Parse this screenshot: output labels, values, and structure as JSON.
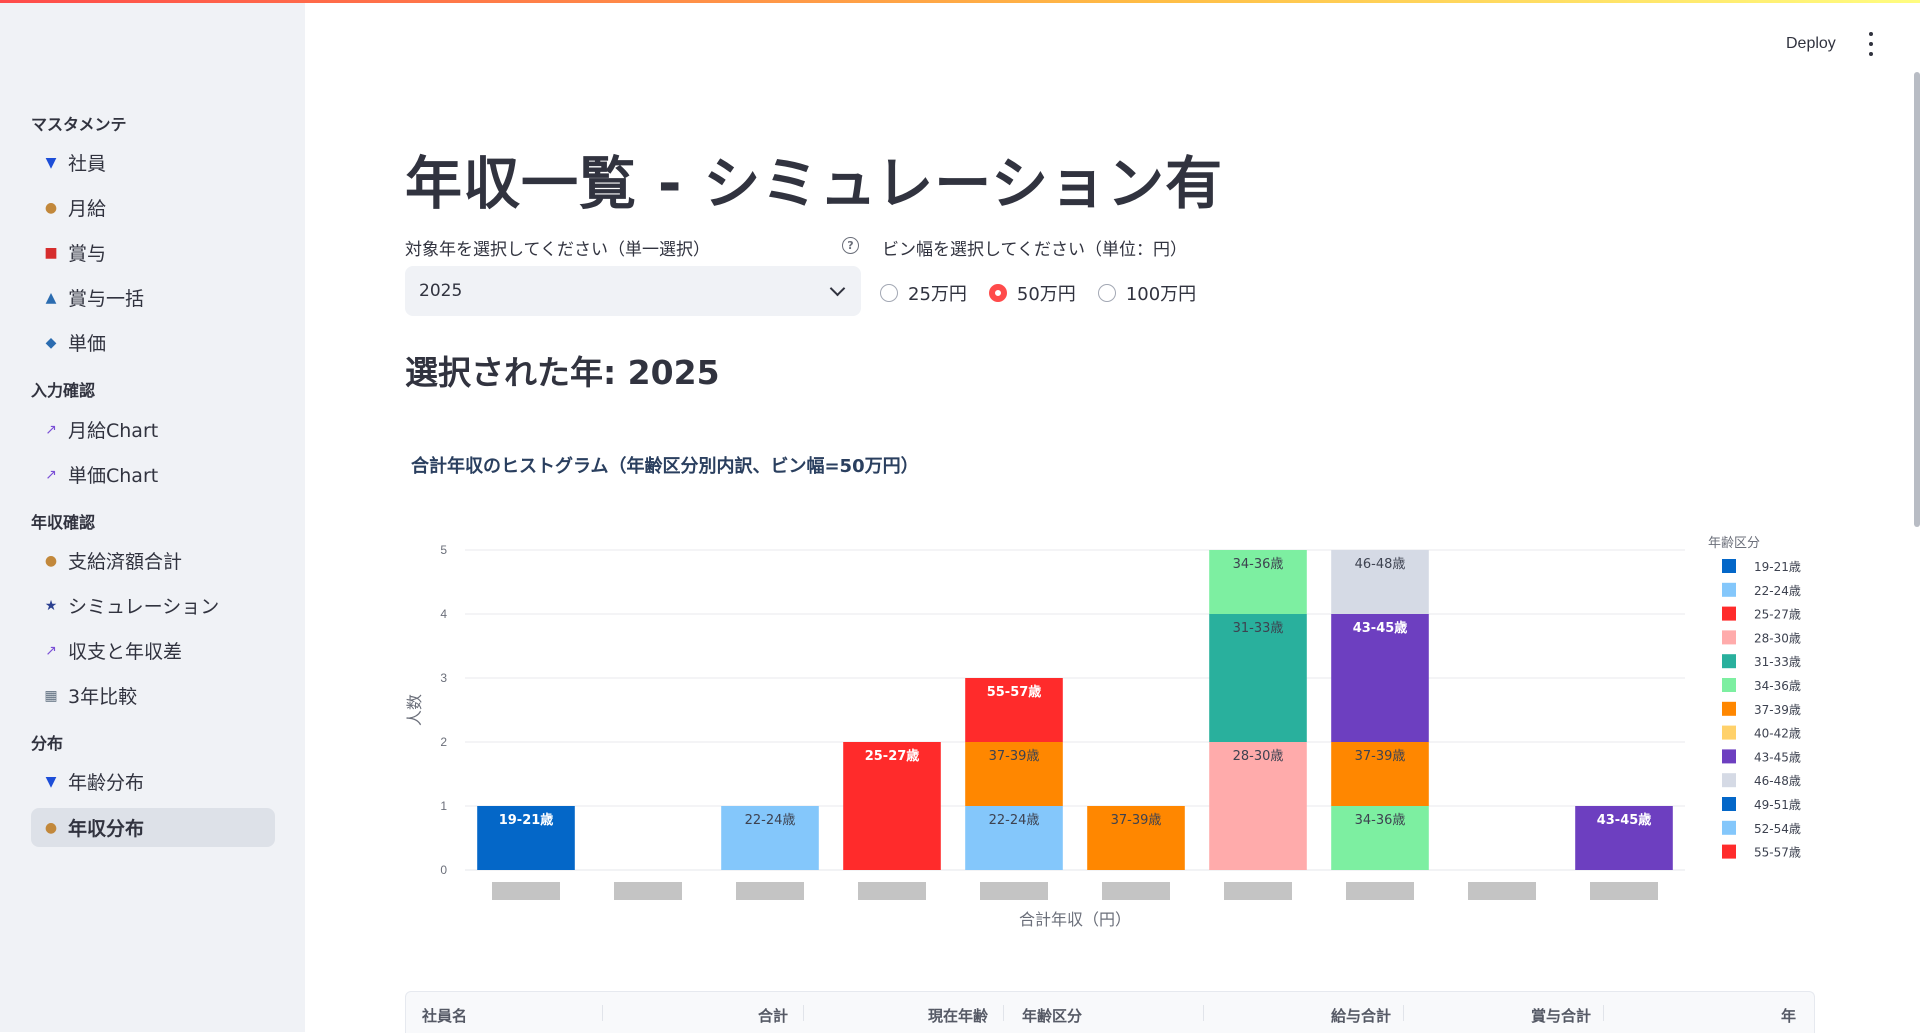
{
  "sidebar": {
    "sections": [
      {
        "label": "マスタメンテ",
        "items": [
          {
            "label": "社員",
            "icon": "necktie-icon",
            "active": false
          },
          {
            "label": "月給",
            "icon": "money-bag-icon",
            "active": false
          },
          {
            "label": "賞与",
            "icon": "gift-icon",
            "active": false
          },
          {
            "label": "賞与一括",
            "icon": "inbox-tray-icon",
            "active": false
          },
          {
            "label": "単価",
            "icon": "worker-icon",
            "active": false
          }
        ]
      },
      {
        "label": "入力確認",
        "items": [
          {
            "label": "月給Chart",
            "icon": "chart-increasing-icon",
            "active": false
          },
          {
            "label": "単価Chart",
            "icon": "chart-increasing-icon",
            "active": false
          }
        ]
      },
      {
        "label": "年収確認",
        "items": [
          {
            "label": "支給済額合計",
            "icon": "money-bag-icon",
            "active": false
          },
          {
            "label": "シミュレーション",
            "icon": "shooting-star-icon",
            "active": false
          },
          {
            "label": "収支と年収差",
            "icon": "chart-increasing-icon",
            "active": false
          },
          {
            "label": "3年比較",
            "icon": "calendar-icon",
            "active": false
          }
        ]
      },
      {
        "label": "分布",
        "items": [
          {
            "label": "年齢分布",
            "icon": "necktie-icon",
            "active": false
          },
          {
            "label": "年収分布",
            "icon": "money-bag-icon",
            "active": true
          }
        ]
      }
    ]
  },
  "header": {
    "deploy_label": "Deploy"
  },
  "main": {
    "title": "年収一覧 - シミュレーション有",
    "year_select": {
      "label": "対象年を選択してください（単一選択）",
      "value": "2025"
    },
    "bin_width": {
      "label": "ビン幅を選択してください（単位：円）",
      "options": [
        "25万円",
        "50万円",
        "100万円"
      ],
      "selected": "50万円"
    },
    "selected_year_text": "選択された年: 2025",
    "chart_title": "合計年収のヒストグラム（年齢区分別内訳、ビン幅=50万円）"
  },
  "chart_data": {
    "type": "bar",
    "stacked": true,
    "title": "合計年収のヒストグラム（年齢区分別内訳、ビン幅=50万円）",
    "xlabel": "合計年収（円）",
    "ylabel": "人数",
    "ylim": [
      0,
      5
    ],
    "yticks": [
      0,
      1,
      2,
      3,
      4,
      5
    ],
    "grid": true,
    "legend_title": "年齢区分",
    "legend_position": "right",
    "categories": [
      "",
      "",
      "",
      "",
      "",
      "",
      "",
      "",
      "",
      ""
    ],
    "series": [
      {
        "name": "19-21歳",
        "color": "#0467c8",
        "values": [
          1,
          0,
          0,
          0,
          0,
          0,
          0,
          0,
          0,
          0
        ]
      },
      {
        "name": "22-24歳",
        "color": "#84c7fb",
        "values": [
          0,
          0,
          1,
          0,
          1,
          0,
          0,
          0,
          0,
          0
        ]
      },
      {
        "name": "25-27歳",
        "color": "#ff2b2b",
        "values": [
          0,
          0,
          0,
          2,
          0,
          0,
          0,
          0,
          0,
          0
        ]
      },
      {
        "name": "28-30歳",
        "color": "#ffabab",
        "values": [
          0,
          0,
          0,
          0,
          0,
          0,
          2,
          0,
          0,
          0
        ]
      },
      {
        "name": "31-33歳",
        "color": "#29b09d",
        "values": [
          0,
          0,
          0,
          0,
          0,
          0,
          2,
          0,
          0,
          0
        ]
      },
      {
        "name": "34-36歳",
        "color": "#7defa1",
        "values": [
          0,
          0,
          0,
          0,
          0,
          0,
          1,
          1,
          0,
          0
        ]
      },
      {
        "name": "37-39歳",
        "color": "#ff8700",
        "values": [
          0,
          0,
          0,
          0,
          1,
          1,
          0,
          1,
          0,
          0
        ]
      },
      {
        "name": "40-42歳",
        "color": "#ffd16a",
        "values": [
          0,
          0,
          0,
          0,
          0,
          0,
          0,
          0,
          0,
          0
        ]
      },
      {
        "name": "43-45歳",
        "color": "#6d3fc0",
        "values": [
          0,
          0,
          0,
          0,
          0,
          0,
          0,
          2,
          0,
          1
        ]
      },
      {
        "name": "46-48歳",
        "color": "#d5dae5",
        "values": [
          0,
          0,
          0,
          0,
          0,
          0,
          0,
          1,
          0,
          0
        ]
      },
      {
        "name": "49-51歳",
        "color": "#0467c8",
        "values": [
          0,
          0,
          0,
          0,
          0,
          0,
          0,
          0,
          0,
          0
        ]
      },
      {
        "name": "52-54歳",
        "color": "#84c7fb",
        "values": [
          0,
          0,
          0,
          0,
          0,
          0,
          0,
          0,
          0,
          0
        ]
      },
      {
        "name": "55-57歳",
        "color": "#ff2b2b",
        "values": [
          0,
          0,
          0,
          0,
          1,
          0,
          0,
          0,
          0,
          0
        ]
      }
    ]
  },
  "table": {
    "columns": [
      "社員名",
      "合計",
      "現在年齢",
      "年齢区分",
      "給与合計",
      "賞与合計",
      "年"
    ]
  }
}
